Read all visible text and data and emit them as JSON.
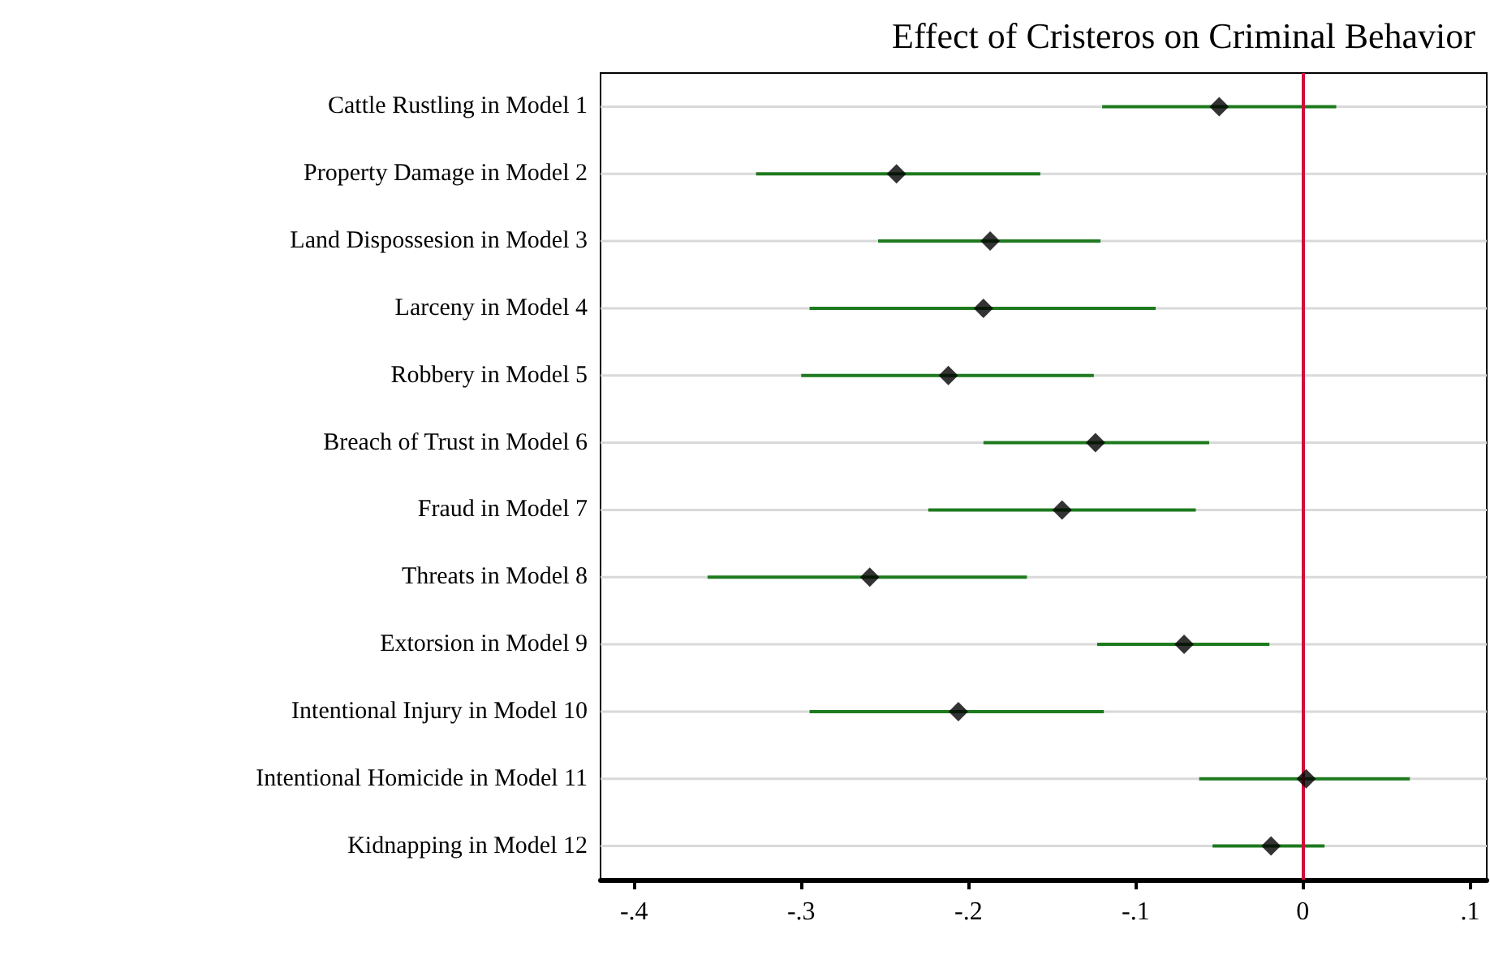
{
  "chart_data": {
    "type": "scatter",
    "title": "Effect of Cristeros on Criminal Behavior",
    "orientation": "horizontal",
    "categories": [
      "Cattle Rustling in Model 1",
      "Property Damage in Model 2",
      "Land Dispossesion in Model 3",
      "Larceny in Model 4",
      "Robbery in Model 5",
      "Breach of Trust in Model 6",
      "Fraud in Model 7",
      "Threats in Model 8",
      "Extorsion in Model 9",
      "Intentional Injury in Model 10",
      "Intentional Homicide in Model 11",
      "Kidnapping in Model 12"
    ],
    "series": [
      {
        "color": "#000000",
        "values": [
          -0.05,
          -0.243,
          -0.187,
          -0.191,
          -0.212,
          -0.124,
          -0.144,
          -0.259,
          -0.071,
          -0.206,
          0.002,
          -0.019
        ],
        "errors": [
          [
            -0.12,
            0.02
          ],
          [
            -0.327,
            -0.157
          ],
          [
            -0.254,
            -0.121
          ],
          [
            -0.295,
            -0.088
          ],
          [
            -0.3,
            -0.125
          ],
          [
            -0.191,
            -0.056
          ],
          [
            -0.224,
            -0.064
          ],
          [
            -0.356,
            -0.165
          ],
          [
            -0.123,
            -0.02
          ],
          [
            -0.295,
            -0.119
          ],
          [
            -0.062,
            0.064
          ],
          [
            -0.054,
            0.013
          ]
        ]
      }
    ],
    "xlim": [
      -0.42,
      0.11
    ],
    "xticks": [
      {
        "value": -0.4,
        "label": "-.4"
      },
      {
        "value": -0.3,
        "label": "-.3"
      },
      {
        "value": -0.2,
        "label": "-.2"
      },
      {
        "value": -0.1,
        "label": "-.1"
      },
      {
        "value": 0,
        "label": "0"
      },
      {
        "value": 0.1,
        "label": ".1"
      }
    ],
    "ref_lines": [
      {
        "axis": "x",
        "value": 0,
        "color": "#d0103a"
      }
    ],
    "grid": "y",
    "marker": "diamond",
    "legend": false
  }
}
